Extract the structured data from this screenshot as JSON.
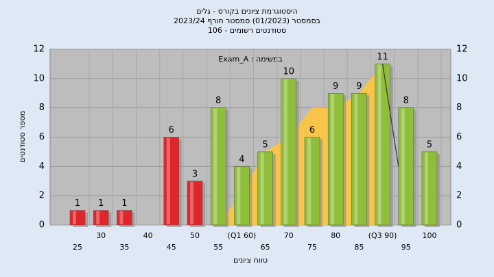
{
  "chart_data": {
    "type": "bar",
    "title": [
      "היסטוגרמת ציונים בקורס - גלים",
      "בסמסטר  (01/2023)  סמסטר חורף 2023/24",
      "סטודנטים רשומים - 106"
    ],
    "annotation": "במשימה : Exam_A",
    "x_label": "טווח ציונים",
    "y_label": "מספר סטודנטים",
    "categories": [
      "25",
      "30",
      "35",
      "40",
      "45",
      "50",
      "55",
      "(Q1 60)",
      "65",
      "70",
      "75",
      "80",
      "85",
      "(Q3 90)",
      "95",
      "100"
    ],
    "values": [
      1,
      1,
      1,
      0,
      6,
      3,
      8,
      4,
      5,
      10,
      6,
      9,
      9,
      11,
      8,
      5
    ],
    "colors": [
      "#e0262b",
      "#e0262b",
      "#e0262b",
      "#e0262b",
      "#e0262b",
      "#e0262b",
      "#8fbf3a",
      "#8fbf3a",
      "#8fbf3a",
      "#8fbf3a",
      "#8fbf3a",
      "#8fbf3a",
      "#8fbf3a",
      "#8fbf3a",
      "#8fbf3a",
      "#8fbf3a"
    ],
    "overlay": {
      "color": "#f7c54a",
      "values": [
        null,
        null,
        null,
        null,
        null,
        null,
        0,
        2.2,
        5,
        6,
        8,
        8,
        9,
        11,
        null,
        null
      ]
    },
    "line": {
      "color": "#333333",
      "values": [
        null,
        null,
        null,
        null,
        null,
        null,
        null,
        null,
        null,
        null,
        null,
        null,
        null,
        11,
        4,
        null
      ]
    },
    "ylim": [
      0,
      12
    ],
    "yticks": [
      0,
      2,
      4,
      6,
      8,
      10,
      12
    ],
    "grid": true
  }
}
